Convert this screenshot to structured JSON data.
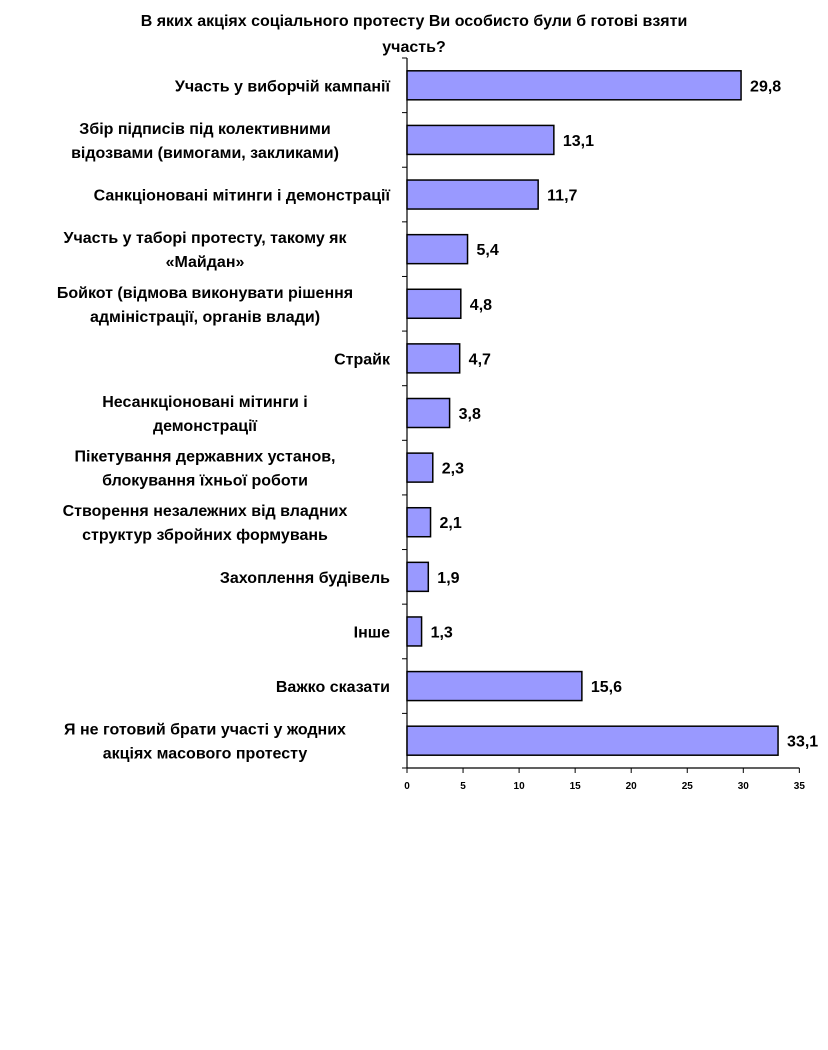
{
  "chart_data": {
    "type": "bar",
    "orientation": "horizontal",
    "title_lines": [
      "В яких акціях соціального протесту Ви особисто були б готові взяти",
      "участь?"
    ],
    "categories": [
      [
        "Участь у виборчій кампанії"
      ],
      [
        "Збір підписів під колективними",
        "відозвами (вимогами, закликами)"
      ],
      [
        "Санкціоновані мітинги і демонстрації"
      ],
      [
        "Участь у таборі протесту, такому як",
        "«Майдан»"
      ],
      [
        "Бойкот (відмова виконувати рішення",
        "адміністрації, органів влади)"
      ],
      [
        "Страйк"
      ],
      [
        "Несанкціоновані мітинги і",
        "демонстрації"
      ],
      [
        "Пікетування державних установ,",
        "блокування їхньої роботи"
      ],
      [
        "Створення незалежних від владних",
        "структур збройних формувань"
      ],
      [
        "Захоплення будівель"
      ],
      [
        "Інше"
      ],
      [
        "Важко сказати"
      ],
      [
        "Я не готовий брати участі у жодних",
        "акціях масового протесту"
      ]
    ],
    "values": [
      29.8,
      13.1,
      11.7,
      5.4,
      4.8,
      4.7,
      3.8,
      2.3,
      2.1,
      1.9,
      1.3,
      15.6,
      33.1
    ],
    "value_labels": [
      "29,8",
      "13,1",
      "11,7",
      "5,4",
      "4,8",
      "4,7",
      "3,8",
      "2,3",
      "2,1",
      "1,9",
      "1,3",
      "15,6",
      "33,1"
    ],
    "x_ticks": [
      0,
      5,
      10,
      15,
      20,
      25,
      30,
      35
    ],
    "xlim": [
      0,
      35
    ],
    "grid": false,
    "legend": "none",
    "colors": {
      "bar_fill": "#9999ff",
      "bar_stroke": "#000000",
      "axis": "#000000"
    }
  }
}
